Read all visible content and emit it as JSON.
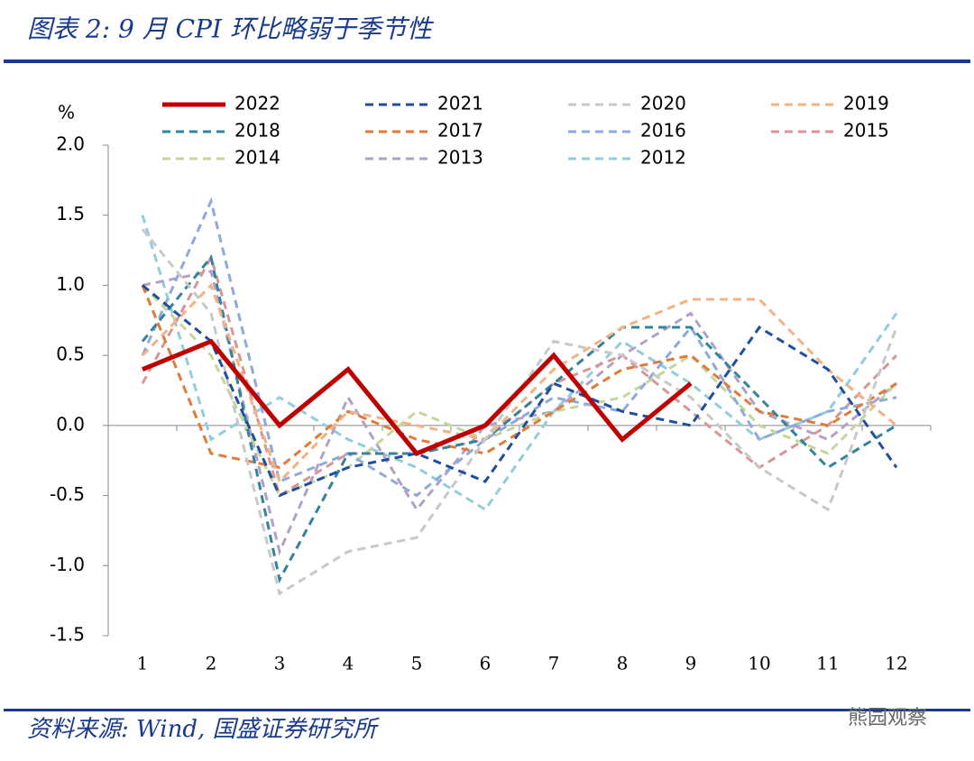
{
  "header": {
    "title": "图表 2: 9 月 CPI 环比略弱于季节性"
  },
  "chart_data": {
    "type": "line",
    "y_unit": "%",
    "categories": [
      "1",
      "2",
      "3",
      "4",
      "5",
      "6",
      "7",
      "8",
      "9",
      "10",
      "11",
      "12"
    ],
    "ylim": [
      -1.5,
      2.0
    ],
    "yticks": [
      {
        "value": 2,
        "label": "2.0"
      },
      1.5,
      {
        "value": 1,
        "label": "1.0"
      },
      0.5,
      {
        "value": 0,
        "label": "0.0"
      },
      -0.5,
      {
        "value": -1,
        "label": "-1.0"
      },
      -1.5
    ],
    "series": [
      {
        "name": "2022",
        "color": "#c00000",
        "dashed": false,
        "values": [
          0.4,
          0.6,
          0.0,
          0.4,
          -0.2,
          0.0,
          0.5,
          -0.1,
          0.3,
          null,
          null,
          null
        ]
      },
      {
        "name": "2021",
        "color": "#1f4e9c",
        "dashed": true,
        "values": [
          1.0,
          0.6,
          -0.5,
          -0.3,
          -0.2,
          -0.4,
          0.3,
          0.1,
          0.0,
          0.7,
          0.4,
          -0.3
        ]
      },
      {
        "name": "2020",
        "color": "#c8c8c8",
        "dashed": true,
        "values": [
          1.4,
          0.8,
          -1.2,
          -0.9,
          -0.8,
          -0.1,
          0.6,
          0.5,
          0.2,
          -0.3,
          -0.6,
          0.7
        ]
      },
      {
        "name": "2019",
        "color": "#f4b183",
        "dashed": true,
        "values": [
          0.5,
          1.0,
          -0.4,
          0.1,
          0.0,
          -0.1,
          0.4,
          0.7,
          0.9,
          0.9,
          0.4,
          0.0
        ]
      },
      {
        "name": "2018",
        "color": "#31849b",
        "dashed": true,
        "values": [
          0.6,
          1.2,
          -1.1,
          -0.2,
          -0.2,
          -0.1,
          0.3,
          0.7,
          0.7,
          0.2,
          -0.3,
          0.0
        ]
      },
      {
        "name": "2017",
        "color": "#e07b39",
        "dashed": true,
        "values": [
          1.0,
          -0.2,
          -0.3,
          0.1,
          -0.1,
          -0.2,
          0.1,
          0.4,
          0.5,
          0.1,
          0.0,
          0.3
        ]
      },
      {
        "name": "2016",
        "color": "#8ea9db",
        "dashed": true,
        "values": [
          0.5,
          1.6,
          -0.4,
          -0.2,
          -0.5,
          -0.1,
          0.2,
          0.1,
          0.7,
          -0.1,
          0.1,
          0.2
        ]
      },
      {
        "name": "2015",
        "color": "#d99594",
        "dashed": true,
        "values": [
          0.3,
          1.2,
          -0.5,
          -0.2,
          -0.2,
          -0.1,
          0.3,
          0.5,
          0.1,
          -0.3,
          0.0,
          0.5
        ]
      },
      {
        "name": "2014",
        "color": "#c4d79b",
        "dashed": true,
        "values": [
          1.0,
          0.5,
          -0.5,
          -0.3,
          0.1,
          -0.1,
          0.1,
          0.2,
          0.5,
          0.0,
          -0.2,
          0.3
        ]
      },
      {
        "name": "2013",
        "color": "#b1a0c7",
        "dashed": true,
        "values": [
          1.0,
          1.1,
          -0.9,
          0.2,
          -0.6,
          0.0,
          0.1,
          0.5,
          0.8,
          0.1,
          -0.1,
          0.3
        ]
      },
      {
        "name": "2012",
        "color": "#92cddc",
        "dashed": true,
        "values": [
          1.5,
          -0.1,
          0.2,
          -0.1,
          -0.3,
          -0.6,
          0.1,
          0.6,
          0.3,
          -0.1,
          0.1,
          0.8
        ]
      }
    ]
  },
  "footer": {
    "source": "资料来源: Wind, 国盛证券研究所",
    "watermark": "熊园观察"
  }
}
